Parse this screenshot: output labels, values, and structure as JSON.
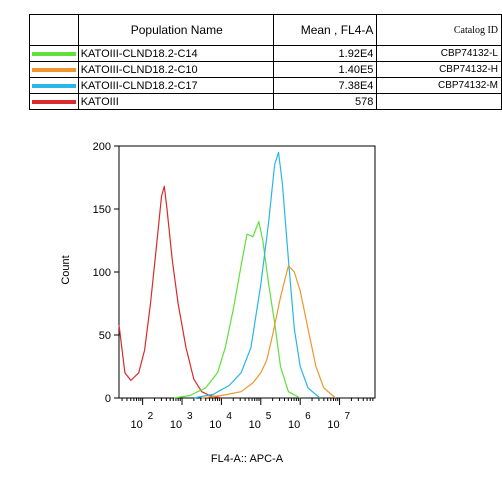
{
  "table": {
    "headers": {
      "name": "Population Name",
      "mean": "Mean , FL4-A",
      "catalog": "Catalog ID"
    },
    "rows": [
      {
        "color": "#5fe03a",
        "name": "KATOIII-CLND18.2-C14",
        "mean": "1.92E4",
        "catalog": "CBP74132-L"
      },
      {
        "color": "#f0962e",
        "name": "KATOIII-CLND18.2-C10",
        "mean": "1.40E5",
        "catalog": "CBP74132-H"
      },
      {
        "color": "#29b6e8",
        "name": "KATOIII-CLND18.2-C17",
        "mean": "7.38E4",
        "catalog": "CBP74132-M"
      },
      {
        "color": "#d92b2b",
        "name": "KATOIII",
        "mean": "578",
        "catalog": ""
      }
    ]
  },
  "chart_data": {
    "type": "line",
    "xlabel": "FL4-A:: APC-A",
    "ylabel": "Count",
    "ylim": [
      0,
      200
    ],
    "yticks": [
      "0",
      "50",
      "100",
      "150",
      "200"
    ],
    "xticks": [
      {
        "base": "10",
        "exp": "2",
        "value": 2
      },
      {
        "base": "10",
        "exp": "3",
        "value": 3
      },
      {
        "base": "10",
        "exp": "4",
        "value": 4
      },
      {
        "base": "10",
        "exp": "5",
        "value": 5
      },
      {
        "base": "10",
        "exp": "6",
        "value": 6
      },
      {
        "base": "10",
        "exp": "7",
        "value": 7
      }
    ],
    "x_scale": "log",
    "series": [
      {
        "name": "KATOIII",
        "color": "#d92b2b",
        "points": [
          [
            1.4,
            58
          ],
          [
            1.55,
            20
          ],
          [
            1.7,
            14
          ],
          [
            1.9,
            20
          ],
          [
            2.05,
            38
          ],
          [
            2.2,
            75
          ],
          [
            2.35,
            120
          ],
          [
            2.48,
            160
          ],
          [
            2.55,
            168
          ],
          [
            2.62,
            150
          ],
          [
            2.75,
            110
          ],
          [
            2.9,
            75
          ],
          [
            3.1,
            40
          ],
          [
            3.3,
            15
          ],
          [
            3.5,
            5
          ],
          [
            3.7,
            2
          ],
          [
            4.0,
            0
          ]
        ]
      },
      {
        "name": "KATOIII-CLND18.2-C14",
        "color": "#5fe03a",
        "points": [
          [
            2.8,
            0
          ],
          [
            3.2,
            2
          ],
          [
            3.6,
            8
          ],
          [
            3.9,
            20
          ],
          [
            4.1,
            40
          ],
          [
            4.3,
            70
          ],
          [
            4.5,
            105
          ],
          [
            4.65,
            130
          ],
          [
            4.8,
            128
          ],
          [
            4.95,
            140
          ],
          [
            5.05,
            125
          ],
          [
            5.2,
            90
          ],
          [
            5.35,
            60
          ],
          [
            5.5,
            25
          ],
          [
            5.7,
            5
          ],
          [
            6.0,
            0
          ]
        ]
      },
      {
        "name": "KATOIII-CLND18.2-C17",
        "color": "#29b6e8",
        "points": [
          [
            3.3,
            0
          ],
          [
            3.8,
            3
          ],
          [
            4.2,
            10
          ],
          [
            4.5,
            20
          ],
          [
            4.75,
            40
          ],
          [
            5.0,
            90
          ],
          [
            5.2,
            140
          ],
          [
            5.35,
            185
          ],
          [
            5.45,
            195
          ],
          [
            5.55,
            170
          ],
          [
            5.7,
            110
          ],
          [
            5.85,
            55
          ],
          [
            6.0,
            25
          ],
          [
            6.2,
            8
          ],
          [
            6.5,
            0
          ]
        ]
      },
      {
        "name": "KATOIII-CLND18.2-C10",
        "color": "#f0962e",
        "points": [
          [
            3.5,
            0
          ],
          [
            4.0,
            2
          ],
          [
            4.5,
            5
          ],
          [
            4.8,
            12
          ],
          [
            5.0,
            20
          ],
          [
            5.15,
            30
          ],
          [
            5.3,
            50
          ],
          [
            5.5,
            80
          ],
          [
            5.7,
            105
          ],
          [
            5.85,
            100
          ],
          [
            6.0,
            85
          ],
          [
            6.2,
            55
          ],
          [
            6.4,
            25
          ],
          [
            6.6,
            8
          ],
          [
            6.9,
            0
          ]
        ]
      }
    ]
  }
}
